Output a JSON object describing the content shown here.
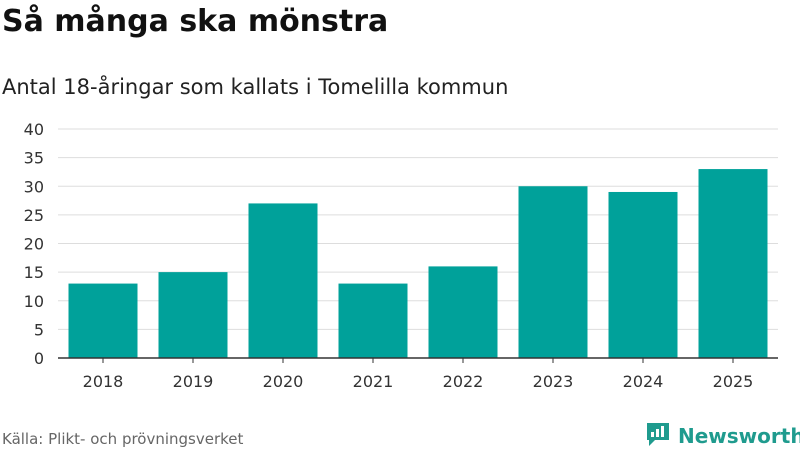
{
  "header": {
    "title": "Så många ska mönstra",
    "subtitle": "Antal 18-åringar som kallats i Tomelilla kommun"
  },
  "footer": {
    "source": "Källa: Plikt- och prövningsverket",
    "brand": "Newsworthy"
  },
  "colors": {
    "bar": "#00a19a",
    "brand": "#1f9b8e",
    "grid": "#dddddd",
    "axis": "#333333"
  },
  "chart_data": {
    "type": "bar",
    "title": "Så många ska mönstra",
    "subtitle": "Antal 18-åringar som kallats i Tomelilla kommun",
    "categories": [
      "2018",
      "2019",
      "2020",
      "2021",
      "2022",
      "2023",
      "2024",
      "2025"
    ],
    "values": [
      13,
      15,
      27,
      13,
      16,
      30,
      29,
      33
    ],
    "xlabel": "",
    "ylabel": "",
    "ylim": [
      0,
      40
    ],
    "yticks": [
      "0",
      "5",
      "10",
      "15",
      "20",
      "25",
      "30",
      "35",
      "40"
    ],
    "grid": true,
    "legend": "none"
  }
}
